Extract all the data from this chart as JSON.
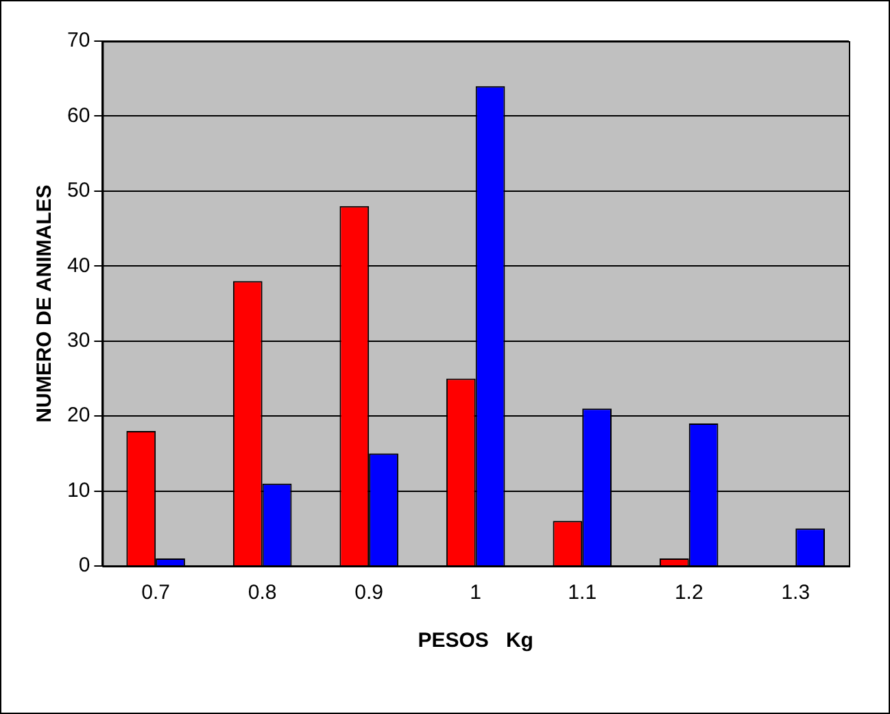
{
  "chart_data": {
    "type": "bar",
    "xlabel": "PESOS   Kg",
    "ylabel": "NUMERO DE ANIMALES",
    "categories": [
      "0.7",
      "0.8",
      "0.9",
      "1",
      "1.1",
      "1.2",
      "1.3"
    ],
    "series": [
      {
        "color": "#ff0000",
        "values": [
          18,
          38,
          48,
          25,
          6,
          1,
          0
        ]
      },
      {
        "color": "#0000ff",
        "values": [
          1,
          11,
          15,
          64,
          21,
          19,
          5
        ]
      }
    ],
    "ylim": [
      0,
      70
    ],
    "yticks": [
      0,
      10,
      20,
      30,
      40,
      50,
      60,
      70
    ],
    "grid": "y",
    "legend": false
  }
}
